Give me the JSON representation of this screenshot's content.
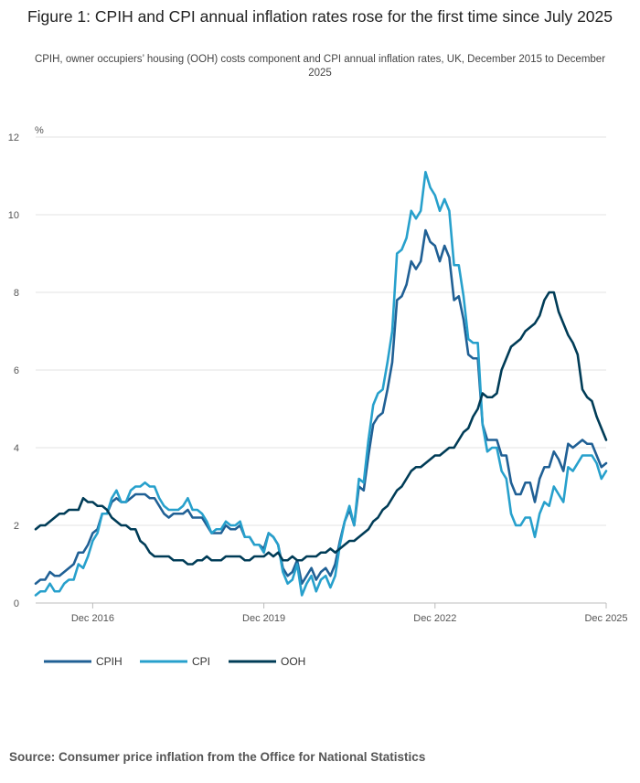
{
  "title": "Figure 1: CPIH and CPI annual inflation rates rose for the first time since July 2025",
  "subtitle": "CPIH, owner occupiers’ housing (OOH) costs component and CPI annual inflation rates, UK, December 2015 to December 2025",
  "source": "Source: Consumer price inflation from the Office for National Statistics",
  "chart_data": {
    "type": "line",
    "ylabel": "%",
    "ylim": [
      0,
      12
    ],
    "yticks": [
      0,
      2,
      4,
      6,
      8,
      10,
      12
    ],
    "x_start": "Dec 2015",
    "x_end": "Dec 2025",
    "x_frequency": "monthly",
    "xticks": [
      "Dec 2016",
      "Dec 2019",
      "Dec 2022",
      "Dec 2025"
    ],
    "grid": "horizontal",
    "legend_position": "bottom-left",
    "series": [
      {
        "name": "CPIH",
        "color": "#206095",
        "values": [
          0.5,
          0.6,
          0.6,
          0.8,
          0.7,
          0.7,
          0.8,
          0.9,
          1.0,
          1.3,
          1.3,
          1.5,
          1.8,
          1.9,
          2.3,
          2.3,
          2.6,
          2.7,
          2.6,
          2.6,
          2.7,
          2.8,
          2.8,
          2.8,
          2.7,
          2.7,
          2.5,
          2.3,
          2.2,
          2.3,
          2.3,
          2.3,
          2.4,
          2.2,
          2.2,
          2.2,
          2.0,
          1.8,
          1.8,
          1.8,
          2.0,
          1.9,
          1.9,
          2.0,
          1.7,
          1.7,
          1.5,
          1.5,
          1.4,
          1.8,
          1.7,
          1.5,
          0.9,
          0.7,
          0.8,
          1.1,
          0.5,
          0.7,
          0.9,
          0.6,
          0.8,
          0.9,
          0.7,
          1.0,
          1.6,
          2.1,
          2.4,
          2.0,
          3.0,
          2.9,
          3.8,
          4.6,
          4.8,
          4.9,
          5.5,
          6.2,
          7.8,
          7.9,
          8.2,
          8.8,
          8.6,
          8.8,
          9.6,
          9.3,
          9.2,
          8.8,
          9.2,
          8.9,
          7.8,
          7.9,
          7.3,
          6.4,
          6.3,
          6.3,
          4.6,
          4.2,
          4.2,
          4.2,
          3.8,
          3.8,
          3.1,
          2.8,
          2.8,
          3.1,
          3.1,
          2.6,
          3.2,
          3.5,
          3.5,
          3.9,
          3.7,
          3.4,
          4.1,
          4.0,
          4.1,
          4.2,
          4.1,
          4.1,
          3.8,
          3.5,
          3.6
        ]
      },
      {
        "name": "CPI",
        "color": "#27a0cc",
        "values": [
          0.2,
          0.3,
          0.3,
          0.5,
          0.3,
          0.3,
          0.5,
          0.6,
          0.6,
          1.0,
          0.9,
          1.2,
          1.6,
          1.8,
          2.3,
          2.3,
          2.7,
          2.9,
          2.6,
          2.6,
          2.9,
          3.0,
          3.0,
          3.1,
          3.0,
          3.0,
          2.7,
          2.5,
          2.4,
          2.4,
          2.4,
          2.5,
          2.7,
          2.4,
          2.4,
          2.3,
          2.1,
          1.8,
          1.9,
          1.9,
          2.1,
          2.0,
          2.0,
          2.1,
          1.7,
          1.7,
          1.5,
          1.5,
          1.3,
          1.8,
          1.7,
          1.5,
          0.8,
          0.5,
          0.6,
          1.0,
          0.2,
          0.5,
          0.7,
          0.3,
          0.6,
          0.7,
          0.4,
          0.7,
          1.5,
          2.1,
          2.5,
          2.0,
          3.2,
          3.1,
          4.2,
          5.1,
          5.4,
          5.5,
          6.2,
          7.0,
          9.0,
          9.1,
          9.4,
          10.1,
          9.9,
          10.1,
          11.1,
          10.7,
          10.5,
          10.1,
          10.4,
          10.1,
          8.7,
          8.7,
          7.9,
          6.8,
          6.7,
          6.7,
          4.6,
          3.9,
          4.0,
          4.0,
          3.4,
          3.2,
          2.3,
          2.0,
          2.0,
          2.2,
          2.2,
          1.7,
          2.3,
          2.6,
          2.5,
          3.0,
          2.8,
          2.6,
          3.5,
          3.4,
          3.6,
          3.8,
          3.8,
          3.8,
          3.6,
          3.2,
          3.4
        ]
      },
      {
        "name": "OOH",
        "color": "#003c57",
        "values": [
          1.9,
          2.0,
          2.0,
          2.1,
          2.2,
          2.3,
          2.3,
          2.4,
          2.4,
          2.4,
          2.7,
          2.6,
          2.6,
          2.5,
          2.5,
          2.4,
          2.2,
          2.1,
          2.0,
          2.0,
          1.9,
          1.9,
          1.6,
          1.5,
          1.3,
          1.2,
          1.2,
          1.2,
          1.2,
          1.1,
          1.1,
          1.1,
          1.0,
          1.0,
          1.1,
          1.1,
          1.2,
          1.1,
          1.1,
          1.1,
          1.2,
          1.2,
          1.2,
          1.2,
          1.1,
          1.1,
          1.2,
          1.2,
          1.2,
          1.3,
          1.2,
          1.3,
          1.1,
          1.1,
          1.2,
          1.1,
          1.1,
          1.2,
          1.2,
          1.2,
          1.3,
          1.3,
          1.4,
          1.3,
          1.4,
          1.5,
          1.6,
          1.6,
          1.7,
          1.8,
          1.9,
          2.1,
          2.2,
          2.4,
          2.5,
          2.7,
          2.9,
          3.0,
          3.2,
          3.4,
          3.5,
          3.5,
          3.6,
          3.7,
          3.8,
          3.8,
          3.9,
          4.0,
          4.0,
          4.2,
          4.4,
          4.5,
          4.8,
          5.0,
          5.4,
          5.3,
          5.3,
          5.4,
          6.0,
          6.3,
          6.6,
          6.7,
          6.8,
          7.0,
          7.1,
          7.2,
          7.4,
          7.8,
          8.0,
          8.0,
          7.5,
          7.2,
          6.9,
          6.7,
          6.4,
          5.5,
          5.3,
          5.2,
          4.8,
          4.5,
          4.2
        ]
      }
    ]
  }
}
